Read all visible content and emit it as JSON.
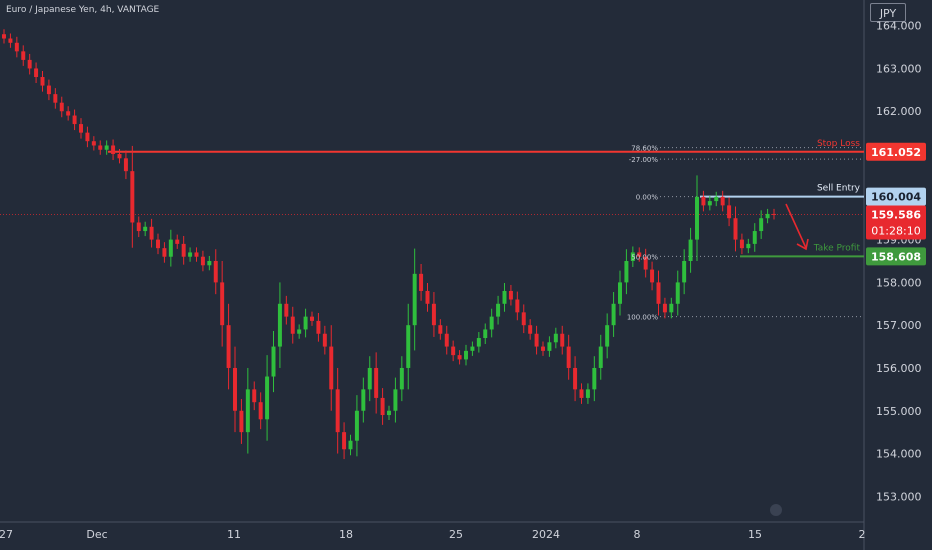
{
  "symbol": {
    "title": "Euro / Japanese Yen, 4h, VANTAGE"
  },
  "currency": {
    "label": "JPY"
  },
  "colors": {
    "background": "#232b39",
    "bull": "#2fbf3d",
    "bear": "#e8292f",
    "stop_loss": "#f23630",
    "sell_entry": "#b2d2ef",
    "take_profit": "#3f9a3d",
    "axis_text": "#d1d4dc",
    "fib_text": "#c8ccd6"
  },
  "chart_data": {
    "type": "candlestick",
    "title": "",
    "xlabel": "",
    "ylabel": "",
    "ylim": [
      152.4,
      164.6
    ],
    "y_ticks": [
      "164.000",
      "163.000",
      "162.000",
      "161.000",
      "160.000",
      "159.000",
      "158.000",
      "157.000",
      "156.000",
      "155.000",
      "154.000",
      "153.000"
    ],
    "x_ticks": [
      "27",
      "Dec",
      "11",
      "18",
      "25",
      "2024",
      "8",
      "15",
      "2"
    ],
    "grid": false,
    "series": [
      {
        "values": [
          163.7,
          163.6,
          163.4,
          163.2,
          163.0,
          162.8,
          162.6,
          162.4,
          162.2,
          162.0,
          161.9,
          161.7,
          161.5,
          161.3,
          161.2,
          161.1,
          161.2,
          161.0,
          160.9,
          160.6,
          159.4,
          159.2,
          159.3,
          159.0,
          158.8,
          158.6,
          159.0,
          158.9,
          158.6,
          158.7,
          158.6,
          158.4,
          158.5,
          158.0,
          157.0,
          156.0,
          155.0,
          154.5,
          155.5,
          155.2,
          154.8,
          155.8,
          156.5,
          157.5,
          157.2,
          156.8,
          156.9,
          157.2,
          157.1,
          156.8,
          156.5,
          155.5,
          154.5,
          154.1,
          154.3,
          155.0,
          155.5,
          156.0,
          155.3,
          154.9,
          155.0,
          155.5,
          156.0,
          157.0,
          158.2,
          157.8,
          157.5,
          157.0,
          156.8,
          156.5,
          156.3,
          156.2,
          156.4,
          156.5,
          156.7,
          156.9,
          157.2,
          157.5,
          157.8,
          157.6,
          157.3,
          157.0,
          156.8,
          156.5,
          156.4,
          156.6,
          156.8,
          156.5,
          156.0,
          155.5,
          155.3,
          155.5,
          156.0,
          156.5,
          157.0,
          157.5,
          158.0,
          158.5,
          158.7,
          158.6,
          158.3,
          158.0,
          157.5,
          157.3,
          157.5,
          158.0,
          158.5,
          159.0,
          160.0,
          159.8,
          159.9,
          160.0,
          159.8,
          159.5,
          159.0,
          158.8,
          158.9,
          159.2,
          159.5,
          159.6,
          159.586
        ]
      }
    ],
    "annotations": {
      "stop_loss": {
        "label": "Stop Loss",
        "price": "161.052",
        "value": 161.052
      },
      "sell_entry": {
        "label": "Sell Entry",
        "price": "160.004",
        "value": 160.004
      },
      "take_profit": {
        "label": "Take Profit",
        "price": "158.608",
        "value": 158.608
      },
      "last_price": {
        "price": "159.586",
        "countdown": "01:28:10",
        "value": 159.586
      },
      "fibonacci": [
        {
          "label": "78.60%",
          "value": 161.15
        },
        {
          "label": "-27.00%",
          "value": 160.88
        },
        {
          "label": "0.00%",
          "value": 160.004
        },
        {
          "label": "50.00%",
          "value": 158.608
        },
        {
          "label": "100.00%",
          "value": 157.2
        }
      ]
    }
  }
}
